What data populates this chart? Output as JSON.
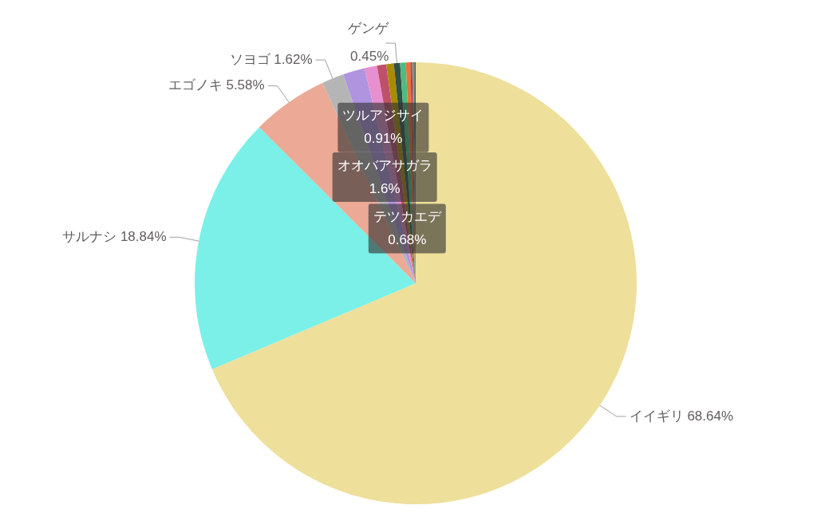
{
  "chart_data": {
    "type": "pie",
    "categories": [
      "イイギリ",
      "サルナシ",
      "エゴノキ",
      "ソヨゴ",
      "オオバアサガラ",
      "ツルアジサイ",
      "テツカエデ",
      null,
      "ゲンゲ",
      null,
      null,
      null,
      null,
      null,
      null
    ],
    "values": [
      68.64,
      18.84,
      5.58,
      1.62,
      1.6,
      0.91,
      0.68,
      0.55,
      0.45,
      0.42,
      0.33,
      0.12,
      0.1,
      0.08,
      0.08
    ],
    "colors": [
      "#eedf9a",
      "#7af0e8",
      "#eba996",
      "#b5b5b5",
      "#b094e0",
      "#e88fd0",
      "#c0506a",
      "#a88c00",
      "#2f5045",
      "#4bbd7e",
      "#e8723a",
      "#c03030",
      "#888888",
      "#3a8080",
      "#6b4a2a"
    ],
    "value_labels": [
      "68.64%",
      "18.84%",
      "5.58%",
      "1.62%",
      "1.6%",
      "0.91%",
      "0.68%",
      null,
      "0.45%",
      null,
      null,
      null,
      null,
      null,
      null
    ],
    "legend": false
  }
}
